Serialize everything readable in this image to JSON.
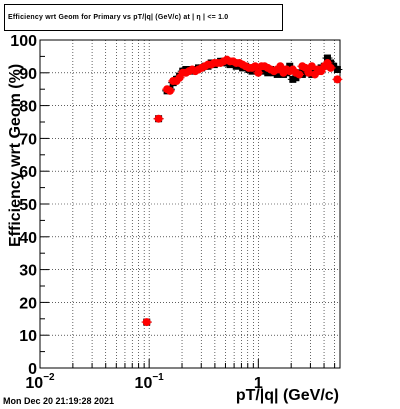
{
  "title": "Efficiency wrt Geom for Primary vs pT/|q| (GeV/c) at | η | <= 1.0",
  "timestamp": "Mon Dec 20 21:19:28 2021",
  "chart_data": {
    "type": "scatter",
    "xlabel": "pT/|q| (GeV/c)",
    "ylabel": "Efficiency wrt Geom (%)",
    "xscale": "log",
    "xlim": [
      0.01,
      5.6
    ],
    "ylim": [
      0,
      100
    ],
    "x_tick_labels": [
      {
        "value": 0.01,
        "label": "10",
        "sup": "−2"
      },
      {
        "value": 0.1,
        "label": "10",
        "sup": "−1"
      },
      {
        "value": 1,
        "label": "1",
        "sup": ""
      }
    ],
    "y_ticks": [
      0,
      10,
      20,
      30,
      40,
      50,
      60,
      70,
      80,
      90,
      100
    ],
    "grid": true,
    "series": [
      {
        "color": "#000000",
        "marker": "square",
        "points": [
          [
            0.095,
            14
          ],
          [
            0.122,
            76
          ],
          [
            0.146,
            84.5
          ],
          [
            0.155,
            85
          ],
          [
            0.166,
            87
          ],
          [
            0.178,
            88
          ],
          [
            0.19,
            89
          ],
          [
            0.203,
            90.5
          ],
          [
            0.217,
            91
          ],
          [
            0.232,
            91
          ],
          [
            0.248,
            90.5
          ],
          [
            0.265,
            91
          ],
          [
            0.283,
            91.5
          ],
          [
            0.303,
            91.5
          ],
          [
            0.324,
            92
          ],
          [
            0.346,
            92
          ],
          [
            0.37,
            93
          ],
          [
            0.395,
            92.5
          ],
          [
            0.422,
            93
          ],
          [
            0.451,
            93.5
          ],
          [
            0.482,
            93.5
          ],
          [
            0.515,
            93
          ],
          [
            0.55,
            92.5
          ],
          [
            0.588,
            93
          ],
          [
            0.628,
            92
          ],
          [
            0.671,
            92.5
          ],
          [
            0.717,
            91.5
          ],
          [
            0.766,
            92
          ],
          [
            0.819,
            91
          ],
          [
            0.875,
            90.5
          ],
          [
            0.935,
            91
          ],
          [
            1.0,
            90.5
          ],
          [
            1.07,
            91
          ],
          [
            1.14,
            90.5
          ],
          [
            1.22,
            90
          ],
          [
            1.3,
            91
          ],
          [
            1.39,
            90
          ],
          [
            1.49,
            89.5
          ],
          [
            1.59,
            90
          ],
          [
            1.7,
            89.5
          ],
          [
            1.82,
            90
          ],
          [
            1.94,
            92
          ],
          [
            2.07,
            88
          ],
          [
            2.21,
            88.5
          ],
          [
            2.37,
            90
          ],
          [
            2.53,
            89.5
          ],
          [
            2.7,
            91
          ],
          [
            2.89,
            90
          ],
          [
            3.09,
            89.5
          ],
          [
            3.3,
            91
          ],
          [
            3.52,
            90.5
          ],
          [
            3.76,
            91.5
          ],
          [
            4.02,
            92
          ],
          [
            4.3,
            94.5
          ],
          [
            4.6,
            93
          ],
          [
            4.9,
            92
          ],
          [
            5.3,
            91
          ]
        ]
      },
      {
        "color": "#ff0000",
        "marker": "circle",
        "points": [
          [
            0.095,
            14
          ],
          [
            0.122,
            76
          ],
          [
            0.146,
            85
          ],
          [
            0.155,
            84.5
          ],
          [
            0.166,
            87.5
          ],
          [
            0.178,
            87.5
          ],
          [
            0.19,
            88.5
          ],
          [
            0.203,
            90
          ],
          [
            0.217,
            90
          ],
          [
            0.232,
            90.5
          ],
          [
            0.248,
            91
          ],
          [
            0.265,
            90.5
          ],
          [
            0.283,
            91
          ],
          [
            0.303,
            91.5
          ],
          [
            0.324,
            92
          ],
          [
            0.346,
            92.5
          ],
          [
            0.37,
            92.5
          ],
          [
            0.395,
            93
          ],
          [
            0.422,
            93
          ],
          [
            0.451,
            93
          ],
          [
            0.482,
            93.5
          ],
          [
            0.515,
            94
          ],
          [
            0.55,
            93.5
          ],
          [
            0.588,
            93.5
          ],
          [
            0.628,
            93
          ],
          [
            0.671,
            93
          ],
          [
            0.717,
            92.5
          ],
          [
            0.766,
            92
          ],
          [
            0.819,
            91.5
          ],
          [
            0.875,
            91.5
          ],
          [
            0.935,
            92
          ],
          [
            1.0,
            90
          ],
          [
            1.07,
            92
          ],
          [
            1.14,
            92
          ],
          [
            1.22,
            91.5
          ],
          [
            1.3,
            91
          ],
          [
            1.39,
            90.5
          ],
          [
            1.49,
            91
          ],
          [
            1.59,
            92
          ],
          [
            1.7,
            90
          ],
          [
            1.82,
            91
          ],
          [
            1.94,
            90.5
          ],
          [
            2.07,
            91
          ],
          [
            2.21,
            90
          ],
          [
            2.37,
            89.5
          ],
          [
            2.53,
            92
          ],
          [
            2.7,
            91.5
          ],
          [
            2.89,
            90
          ],
          [
            3.09,
            92
          ],
          [
            3.3,
            89.5
          ],
          [
            3.52,
            91
          ],
          [
            3.76,
            90.5
          ],
          [
            4.02,
            92
          ],
          [
            4.3,
            93
          ],
          [
            4.6,
            91.5
          ],
          [
            5.3,
            88
          ]
        ]
      }
    ]
  }
}
